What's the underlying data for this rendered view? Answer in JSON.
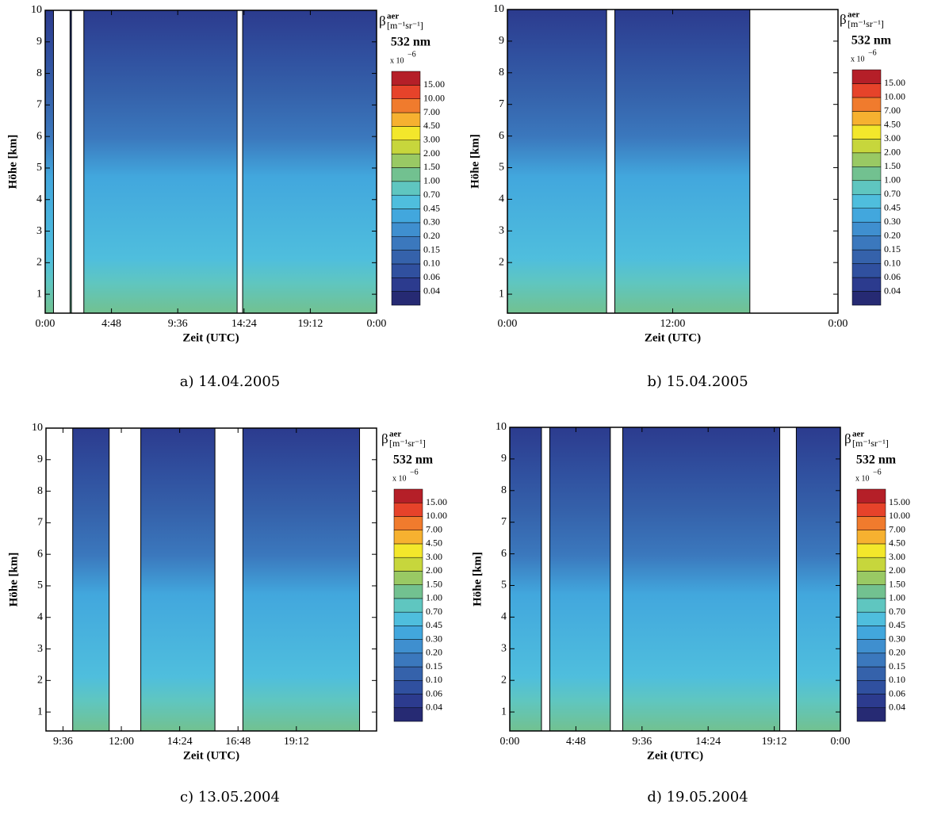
{
  "colorbar": {
    "symbol": "β",
    "sup": "aer",
    "unit": "[m⁻¹sr⁻¹]",
    "wavelength": "532 nm",
    "scale": "x 10",
    "scale_exp": "−6",
    "levels": [
      0.04,
      0.06,
      0.1,
      0.15,
      0.2,
      0.3,
      0.45,
      0.7,
      1,
      1.5,
      2,
      3,
      4.5,
      7,
      10,
      15
    ],
    "value_labels": [
      "0.04",
      "0.06",
      "0.10",
      "0.15",
      "0.20",
      "0.30",
      "0.45",
      "0.70",
      "1.00",
      "1.50",
      "2.00",
      "3.00",
      "4.50",
      "7.00",
      "10.00",
      "15.00"
    ],
    "colors": [
      "#262a73",
      "#2c3b8e",
      "#30509f",
      "#3562ab",
      "#3b78bd",
      "#3f8fcf",
      "#42a7dd",
      "#4fbedd",
      "#5fc6c0",
      "#72c190",
      "#99c964",
      "#c7d63c",
      "#f3e72b",
      "#f6b130",
      "#f07b2d",
      "#e6432a",
      "#b51f28"
    ]
  },
  "chart_data": [
    {
      "type": "contour",
      "title": "a) 14.04.2005",
      "x_label": "Zeit (UTC)",
      "y_label": "Höhe [km]",
      "xlim": [
        0,
        24
      ],
      "xticks": [
        {
          "value": 0,
          "label": "0:00"
        },
        {
          "value": 4.8,
          "label": "4:48"
        },
        {
          "value": 9.6,
          "label": "9:36"
        },
        {
          "value": 14.4,
          "label": "14:24"
        },
        {
          "value": 19.2,
          "label": "19:12"
        },
        {
          "value": 24,
          "label": "0:00"
        }
      ],
      "ylim": [
        0.4,
        10
      ],
      "yticks": [
        1,
        2,
        3,
        4,
        5,
        6,
        7,
        8,
        9,
        10
      ],
      "gaps": [
        [
          0.6,
          1.8
        ],
        [
          1.9,
          2.8
        ],
        [
          13.9,
          14.3
        ]
      ]
    },
    {
      "type": "contour",
      "title": "b) 15.04.2005",
      "x_label": "Zeit (UTC)",
      "y_label": "Höhe [km]",
      "xlim": [
        0,
        24
      ],
      "xticks": [
        {
          "value": 0,
          "label": "0:00"
        },
        {
          "value": 12,
          "label": "12:00"
        },
        {
          "value": 24,
          "label": "0:00"
        }
      ],
      "ylim": [
        0.4,
        10
      ],
      "yticks": [
        1,
        2,
        3,
        4,
        5,
        6,
        7,
        8,
        9,
        10
      ],
      "gaps": [
        [
          7.2,
          7.8
        ],
        [
          17.6,
          24
        ]
      ]
    },
    {
      "type": "contour",
      "title": "c) 13.05.2004",
      "x_label": "Zeit (UTC)",
      "y_label": "Höhe [km]",
      "xlim": [
        8.9,
        22.5
      ],
      "xticks": [
        {
          "value": 9.6,
          "label": "9:36"
        },
        {
          "value": 12,
          "label": "12:00"
        },
        {
          "value": 14.4,
          "label": "14:24"
        },
        {
          "value": 16.8,
          "label": "16:48"
        },
        {
          "value": 19.2,
          "label": "19:12"
        }
      ],
      "ylim": [
        0.4,
        10
      ],
      "yticks": [
        1,
        2,
        3,
        4,
        5,
        6,
        7,
        8,
        9,
        10
      ],
      "gaps": [
        [
          8.9,
          10
        ],
        [
          11.5,
          12.8
        ],
        [
          15.85,
          17
        ],
        [
          21.8,
          22.5
        ]
      ]
    },
    {
      "type": "contour",
      "title": "d) 19.05.2004",
      "x_label": "Zeit (UTC)",
      "y_label": "Höhe [km]",
      "xlim": [
        0,
        24
      ],
      "xticks": [
        {
          "value": 0,
          "label": "0:00"
        },
        {
          "value": 4.8,
          "label": "4:48"
        },
        {
          "value": 9.6,
          "label": "9:36"
        },
        {
          "value": 14.4,
          "label": "14:24"
        },
        {
          "value": 19.2,
          "label": "19:12"
        },
        {
          "value": 24,
          "label": "0:00"
        }
      ],
      "ylim": [
        0.4,
        10
      ],
      "yticks": [
        1,
        2,
        3,
        4,
        5,
        6,
        7,
        8,
        9,
        10
      ],
      "gaps": [
        [
          2.3,
          2.9
        ],
        [
          7.3,
          8.2
        ],
        [
          19.6,
          20.8
        ]
      ]
    }
  ]
}
